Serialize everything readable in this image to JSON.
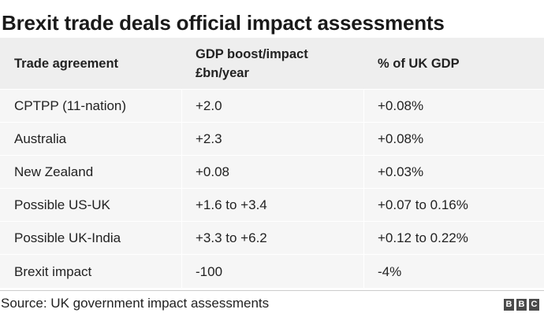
{
  "title": "Brexit trade deals official impact assessments",
  "table": {
    "headers": [
      "Trade agreement",
      "GDP boost/impact",
      "£bn/year",
      "% of UK GDP"
    ],
    "rows": [
      [
        "CPTPP (11-nation)",
        "+2.0",
        "+0.08%"
      ],
      [
        "Australia",
        "+2.3",
        "+0.08%"
      ],
      [
        "New Zealand",
        "+0.08",
        "+0.03%"
      ],
      [
        "Possible US-UK",
        "+1.6 to +3.4",
        "+0.07 to 0.16%"
      ],
      [
        "Possible UK-India",
        "+3.3 to +6.2",
        "+0.12 to 0.22%"
      ],
      [
        "Brexit impact",
        "-100",
        "-4%"
      ]
    ]
  },
  "source": "Source: UK government impact assessments",
  "logo": [
    "B",
    "B",
    "C"
  ]
}
